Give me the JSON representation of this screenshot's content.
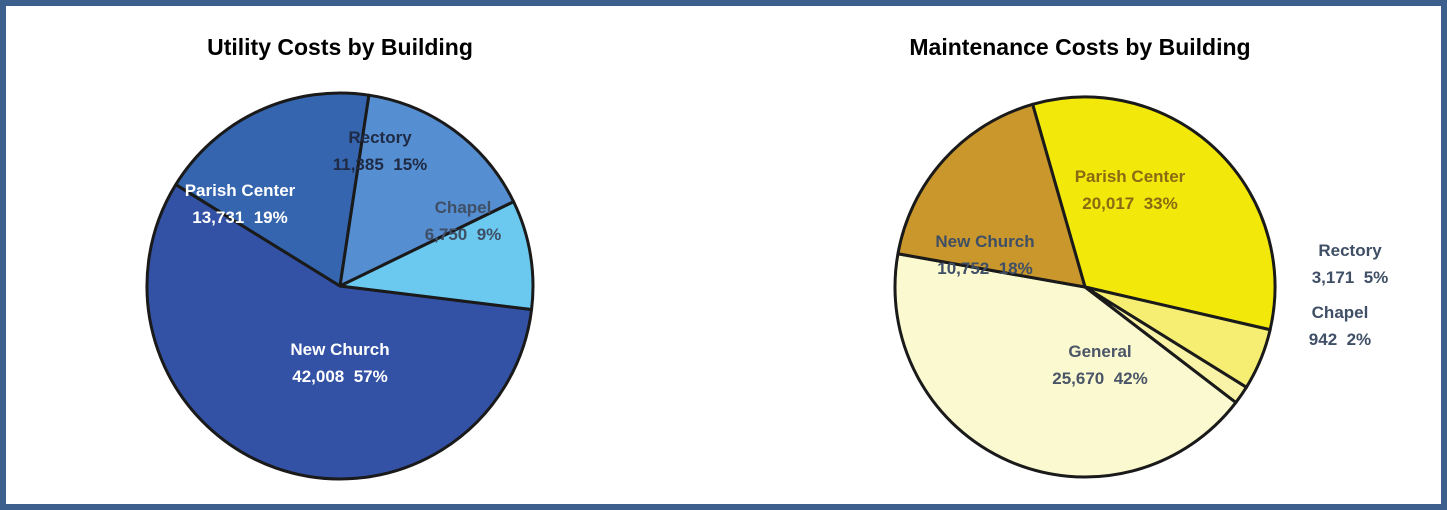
{
  "chart_data": [
    {
      "type": "pie",
      "title": "Utility Costs by Building",
      "slices": [
        {
          "label": "New Church",
          "value": 42008,
          "value_text": "42,008",
          "pct": "57%",
          "color": "#3352a5",
          "text_color": "#ffffff"
        },
        {
          "label": "Parish Center",
          "value": 13731,
          "value_text": "13,731",
          "pct": "19%",
          "color": "#3465ae",
          "text_color": "#ffffff"
        },
        {
          "label": "Rectory",
          "value": 11385,
          "value_text": "11,385",
          "pct": "15%",
          "color": "#558ed1",
          "text_color": "#1f2a44"
        },
        {
          "label": "Chapel",
          "value": 6750,
          "value_text": "6,750",
          "pct": "9%",
          "color": "#6bc8ee",
          "text_color": "#3f4f66"
        }
      ]
    },
    {
      "type": "pie",
      "title": "Maintenance Costs by Building",
      "slices": [
        {
          "label": "Parish Center",
          "value": 20017,
          "value_text": "20,017",
          "pct": "33%",
          "color": "#f2e80a",
          "text_color": "#8a6a12"
        },
        {
          "label": "Rectory",
          "value": 3171,
          "value_text": "3,171",
          "pct": "5%",
          "color": "#f5ee73",
          "text_color": "#3f4f66"
        },
        {
          "label": "Chapel",
          "value": 942,
          "value_text": "942",
          "pct": "2%",
          "color": "#f8f3a6",
          "text_color": "#3f4f66"
        },
        {
          "label": "General",
          "value": 25670,
          "value_text": "25,670",
          "pct": "42%",
          "color": "#fbf9cf",
          "text_color": "#4a5568"
        },
        {
          "label": "New Church",
          "value": 10752,
          "value_text": "10,752",
          "pct": "18%",
          "color": "#c9972c",
          "text_color": "#3f4f66"
        }
      ]
    }
  ]
}
